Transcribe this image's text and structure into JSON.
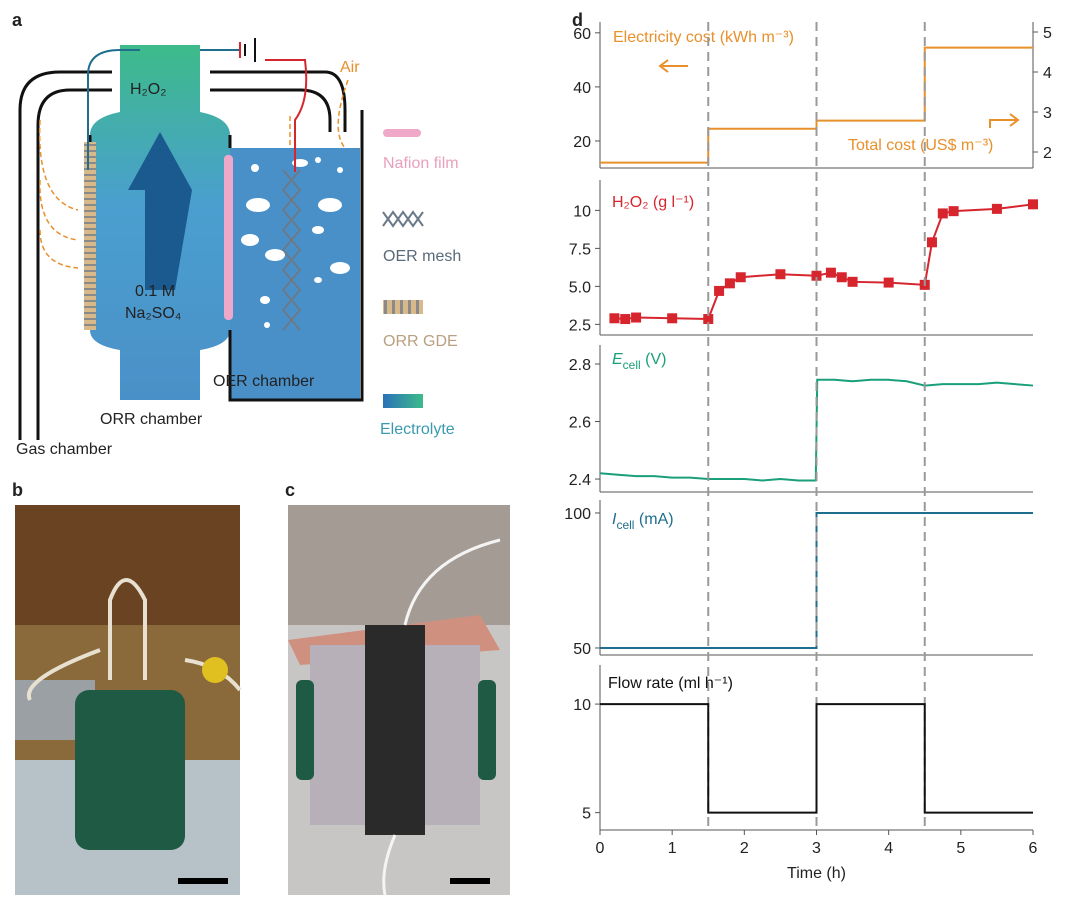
{
  "panels": {
    "a": "a",
    "b": "b",
    "c": "c",
    "d": "d"
  },
  "diagram": {
    "product": "H₂O₂",
    "electrolyte_conc": "0.1 M",
    "electrolyte_salt": "Na₂SO₄",
    "air": "Air",
    "oer_chamber": "OER chamber",
    "orr_chamber": "ORR chamber",
    "gas_chamber": "Gas chamber",
    "legend": [
      "Nafion film",
      "OER mesh",
      "ORR GDE",
      "Electrolyte"
    ]
  },
  "chart_data": [
    {
      "type": "line",
      "xlim": [
        0,
        6
      ],
      "ylim": [
        10,
        64
      ],
      "yticks": [
        20,
        40,
        60
      ],
      "y2lim": [
        1.6,
        5.25
      ],
      "y2ticks": [
        2,
        3,
        4,
        5
      ],
      "annotations": [
        {
          "text": "Electricity cost (kWh m⁻³)",
          "color": "#e8902a"
        },
        {
          "text": "Total cost (US$ m⁻³)",
          "color": "#e8902a"
        }
      ],
      "series": [
        {
          "color": "#e8902a",
          "x": [
            0,
            1.5,
            1.5,
            3,
            3,
            4.5,
            4.5,
            6
          ],
          "values": [
            12,
            12,
            24.5,
            24.5,
            27.5,
            27.5,
            54.5,
            54.5
          ]
        }
      ]
    },
    {
      "type": "line",
      "xlim": [
        0,
        6
      ],
      "ylim": [
        1.8,
        12
      ],
      "yticks": [
        2.5,
        {
          "value": 5,
          "label": "5.0"
        },
        7.5,
        10
      ],
      "annotations": [
        {
          "text": "H₂O₂ (g l⁻¹)",
          "color": "#d7252e"
        }
      ],
      "series": [
        {
          "color": "#d7252e",
          "marker": "square",
          "x": [
            0.2,
            0.35,
            0.5,
            1,
            1.5,
            1.65,
            1.8,
            1.95,
            2.5,
            3,
            3.2,
            3.35,
            3.5,
            4,
            4.5,
            4.6,
            4.75,
            4.9,
            5.5,
            6
          ],
          "values": [
            2.9,
            2.85,
            2.95,
            2.9,
            2.85,
            4.7,
            5.2,
            5.6,
            5.8,
            5.7,
            5.9,
            5.6,
            5.3,
            5.25,
            5.1,
            7.9,
            9.8,
            9.95,
            10.1,
            10.4
          ]
        }
      ]
    },
    {
      "type": "line",
      "xlim": [
        0,
        6
      ],
      "ylim": [
        2.355,
        2.866
      ],
      "yticks": [
        2.4,
        2.6,
        2.8
      ],
      "annotations": [
        {
          "text": "E",
          "sub": "cell",
          "after": " (V)",
          "color": "#19a07a",
          "italic": true
        }
      ],
      "series": [
        {
          "color": "#19a07a",
          "x": [
            0,
            0.25,
            0.5,
            0.75,
            1,
            1.25,
            1.5,
            1.75,
            2,
            2.25,
            2.5,
            2.75,
            2.99,
            3.01,
            3.25,
            3.5,
            3.75,
            4,
            4.25,
            4.5,
            4.75,
            5,
            5.25,
            5.5,
            5.75,
            6
          ],
          "values": [
            2.42,
            2.415,
            2.41,
            2.41,
            2.405,
            2.405,
            2.4,
            2.4,
            2.4,
            2.395,
            2.4,
            2.395,
            2.395,
            2.745,
            2.745,
            2.74,
            2.745,
            2.745,
            2.74,
            2.725,
            2.73,
            2.73,
            2.73,
            2.735,
            2.73,
            2.725
          ]
        }
      ]
    },
    {
      "type": "line",
      "xlim": [
        0,
        6
      ],
      "ylim": [
        47.4,
        104.8
      ],
      "yticks": [
        50,
        100
      ],
      "annotations": [
        {
          "text": "I",
          "sub": "cell",
          "after": " (mA)",
          "color": "#1f6e8e",
          "italic": true
        }
      ],
      "series": [
        {
          "color": "#1f6e8e",
          "x": [
            0,
            3,
            3,
            6
          ],
          "values": [
            50,
            50,
            100,
            100
          ]
        }
      ]
    },
    {
      "type": "line",
      "xlim": [
        0,
        6
      ],
      "ylim": [
        4.2,
        11.8
      ],
      "yticks": [
        5,
        10
      ],
      "xticks": [
        0,
        1,
        2,
        3,
        4,
        5,
        6
      ],
      "xlabel": "Time (h)",
      "vlines": [
        1.5,
        3,
        4.5
      ],
      "annotations": [
        {
          "text": "Flow rate (ml h⁻¹)",
          "color": "#111"
        }
      ],
      "series": [
        {
          "color": "#111",
          "x": [
            0,
            1.5,
            1.5,
            3,
            3,
            4.5,
            4.5,
            6
          ],
          "values": [
            10,
            10,
            5,
            5,
            10,
            10,
            5,
            5
          ]
        }
      ]
    }
  ]
}
